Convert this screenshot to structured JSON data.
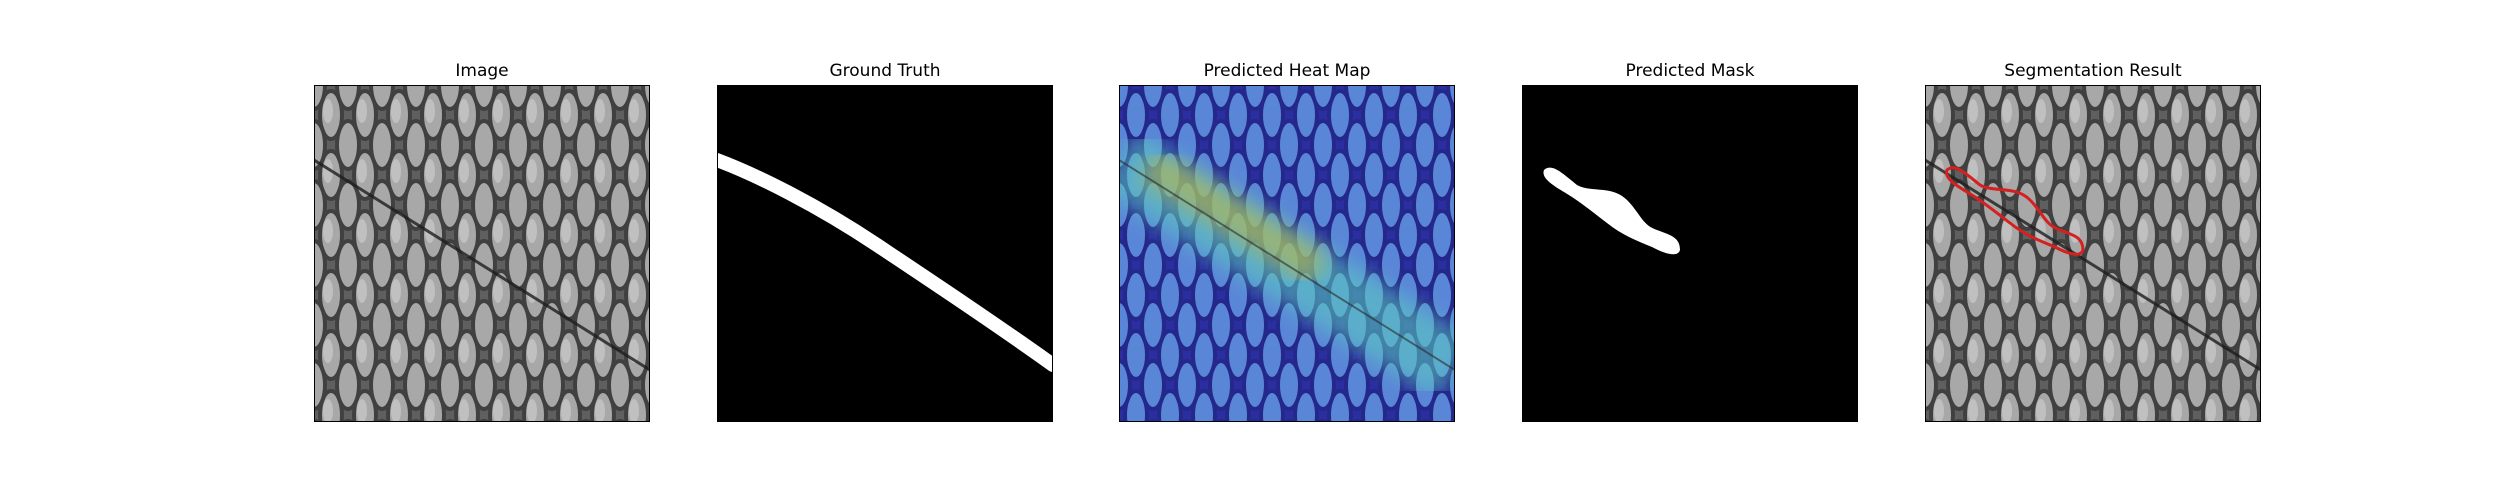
{
  "panels": [
    {
      "title": "Image",
      "content": "grayscale-texture-with-diagonal-defect"
    },
    {
      "title": "Ground Truth",
      "content": "binary-mask-diagonal-band"
    },
    {
      "title": "Predicted Heat Map",
      "content": "jet-heatmap-overlay"
    },
    {
      "title": "Predicted Mask",
      "content": "binary-mask-partial-blob"
    },
    {
      "title": "Segmentation Result",
      "content": "texture-with-red-contour"
    }
  ],
  "colors": {
    "background": "#ffffff",
    "mask_foreground": "#ffffff",
    "mask_background": "#000000",
    "contour": "#d62020",
    "frame": "#000000"
  }
}
